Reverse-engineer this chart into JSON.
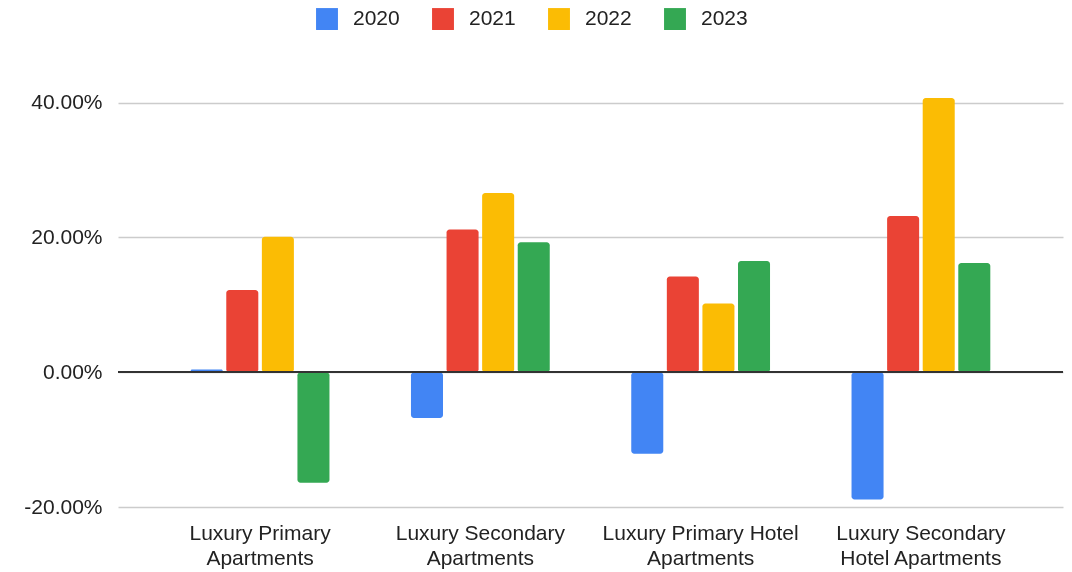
{
  "chart_data": {
    "type": "bar",
    "categories": [
      "Luxury Primary Apartments",
      "Luxury Secondary Apartments",
      "Luxury Primary Hotel Apartments",
      "Luxury Secondary Hotel Apartments"
    ],
    "series": [
      {
        "name": "2020",
        "color": "#4285f4",
        "values": [
          0.4,
          -6.8,
          -12.1,
          -18.9
        ]
      },
      {
        "name": "2021",
        "color": "#ea4335",
        "values": [
          12.2,
          21.2,
          14.2,
          23.2
        ]
      },
      {
        "name": "2022",
        "color": "#fbbc04",
        "values": [
          20.1,
          26.6,
          10.2,
          40.7
        ]
      },
      {
        "name": "2023",
        "color": "#34a853",
        "values": [
          -16.4,
          19.3,
          16.5,
          16.2
        ]
      }
    ],
    "ylim": [
      -20,
      40.7
    ],
    "yticks": [
      {
        "value": -20,
        "label": "-20.00%"
      },
      {
        "value": 0,
        "label": "0.00%"
      },
      {
        "value": 20,
        "label": "20.00%"
      },
      {
        "value": 40,
        "label": "40.00%"
      }
    ],
    "grid": "y",
    "legend": "top"
  }
}
